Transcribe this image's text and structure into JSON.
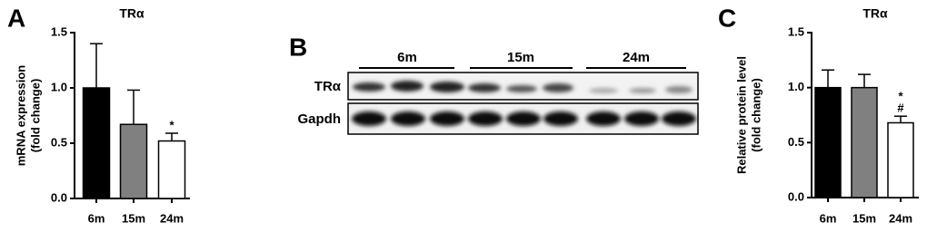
{
  "chart_data": [
    {
      "type": "bar",
      "panel_label": "A",
      "title": "TRα",
      "ylabel": [
        "mRNA expression",
        "(fold change)"
      ],
      "categories": [
        "6m",
        "15m",
        "24m"
      ],
      "values": [
        1.0,
        0.67,
        0.52
      ],
      "errors": [
        0.4,
        0.31,
        0.07
      ],
      "colors": [
        "#000000",
        "#808080",
        "#ffffff"
      ],
      "annotations": [
        null,
        null,
        [
          "*"
        ]
      ],
      "ylim": [
        0,
        1.5
      ],
      "yticks": [
        {
          "value": 0,
          "label": "0.0"
        },
        {
          "value": 0.5,
          "label": "0.5"
        },
        {
          "value": 1,
          "label": "1.0"
        },
        {
          "value": 1.5,
          "label": "1.5"
        }
      ]
    },
    {
      "type": "bar",
      "panel_label": "C",
      "title": "TRα",
      "ylabel": [
        "Relative protein level",
        "(fold change)"
      ],
      "categories": [
        "6m",
        "15m",
        "24m"
      ],
      "values": [
        1.0,
        1.0,
        0.68
      ],
      "errors": [
        0.16,
        0.12,
        0.06
      ],
      "colors": [
        "#000000",
        "#808080",
        "#ffffff"
      ],
      "annotations": [
        null,
        null,
        [
          "*",
          "#"
        ]
      ],
      "ylim": [
        0,
        1.5
      ],
      "yticks": [
        {
          "value": 0,
          "label": "0.0"
        },
        {
          "value": 0.5,
          "label": "0.5"
        },
        {
          "value": 1,
          "label": "1.0"
        },
        {
          "value": 1.5,
          "label": "1.5"
        }
      ]
    }
  ],
  "blot": {
    "panel_label": "B",
    "groups": [
      "6m",
      "15m",
      "24m"
    ],
    "rows": [
      "TRα",
      "Gapdh"
    ]
  }
}
